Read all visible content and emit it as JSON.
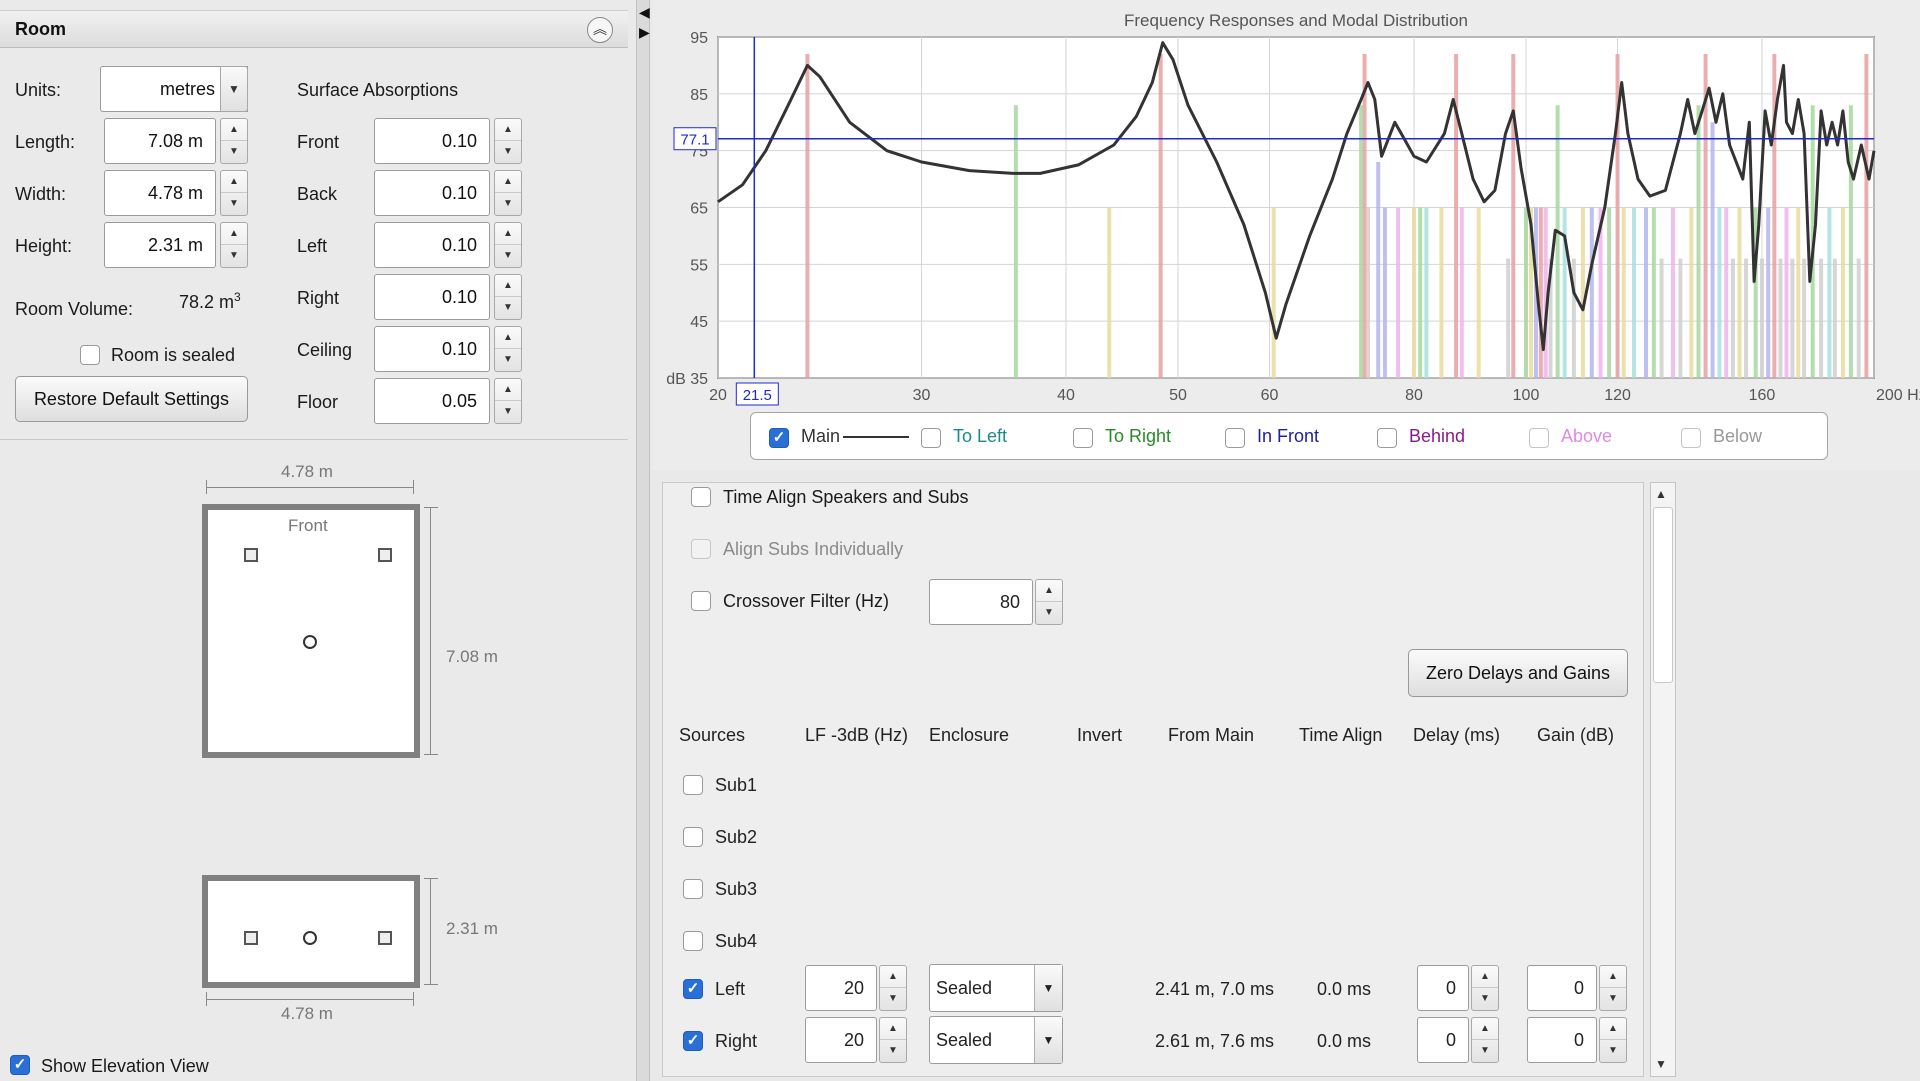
{
  "room": {
    "title": "Room",
    "units_label": "Units:",
    "units_value": "metres",
    "length_label": "Length:",
    "length_value": "7.08 m",
    "width_label": "Width:",
    "width_value": "4.78 m",
    "height_label": "Height:",
    "height_value": "2.31 m",
    "volume_label": "Room Volume:",
    "volume_value": "78.2 m",
    "volume_exp": "3",
    "sealed_label": "Room is sealed",
    "restore_label": "Restore Default Settings",
    "surface_title": "Surface Absorptions",
    "surfaces": [
      {
        "label": "Front",
        "value": "0.10"
      },
      {
        "label": "Back",
        "value": "0.10"
      },
      {
        "label": "Left",
        "value": "0.10"
      },
      {
        "label": "Right",
        "value": "0.10"
      },
      {
        "label": "Ceiling",
        "value": "0.10"
      },
      {
        "label": "Floor",
        "value": "0.05"
      }
    ]
  },
  "plan": {
    "top_dim": "4.78 m",
    "front_label": "Front",
    "side_dim": "7.08 m",
    "elev_side_dim": "2.31 m",
    "elev_bottom_dim": "4.78 m",
    "show_elevation_label": "Show Elevation View"
  },
  "chart_data": {
    "type": "line",
    "title": "Frequency Responses and Modal Distribution",
    "xlabel": "Hz",
    "ylabel": "dB",
    "xscale": "log",
    "xlim": [
      20,
      200
    ],
    "ylim": [
      35,
      95
    ],
    "x_ticks": [
      "20",
      "30",
      "40",
      "50",
      "60",
      "80",
      "100",
      "120",
      "160",
      "200 Hz"
    ],
    "x_tick_values": [
      20,
      30,
      40,
      50,
      60,
      80,
      100,
      120,
      160,
      200
    ],
    "y_ticks": [
      "95",
      "85",
      "75",
      "65",
      "55",
      "45",
      "dB 35"
    ],
    "y_tick_values": [
      95,
      85,
      75,
      65,
      55,
      45,
      35
    ],
    "cursor_x": "21.5",
    "cursor_y": "77.1",
    "cursor_x_value": 21.5,
    "cursor_y_value": 77.1,
    "series": [
      {
        "name": "Main",
        "color": "#333333",
        "points": [
          [
            20,
            66
          ],
          [
            21,
            69
          ],
          [
            22,
            75
          ],
          [
            23,
            83
          ],
          [
            23.9,
            90
          ],
          [
            24.5,
            88
          ],
          [
            26,
            80
          ],
          [
            28,
            75
          ],
          [
            30,
            73
          ],
          [
            33,
            71.5
          ],
          [
            36,
            71
          ],
          [
            38,
            71
          ],
          [
            41,
            72.5
          ],
          [
            44,
            76
          ],
          [
            46,
            81
          ],
          [
            47.5,
            87
          ],
          [
            48.5,
            94
          ],
          [
            49.5,
            91
          ],
          [
            51,
            83
          ],
          [
            54,
            73
          ],
          [
            57,
            62
          ],
          [
            59.5,
            50
          ],
          [
            60.8,
            42
          ],
          [
            62,
            48
          ],
          [
            65,
            60
          ],
          [
            68,
            70
          ],
          [
            70,
            78
          ],
          [
            72,
            84
          ],
          [
            73,
            87
          ],
          [
            74,
            84
          ],
          [
            75,
            74
          ],
          [
            76,
            77
          ],
          [
            77,
            80
          ],
          [
            78,
            78
          ],
          [
            80,
            74
          ],
          [
            82,
            73
          ],
          [
            85,
            78
          ],
          [
            86.5,
            84
          ],
          [
            88,
            78
          ],
          [
            90,
            70
          ],
          [
            92,
            66
          ],
          [
            94,
            68
          ],
          [
            96,
            78
          ],
          [
            97.5,
            82
          ],
          [
            99,
            72
          ],
          [
            101,
            62
          ],
          [
            102.5,
            48
          ],
          [
            103.5,
            40
          ],
          [
            104.5,
            50
          ],
          [
            106,
            61
          ],
          [
            108,
            60
          ],
          [
            110,
            50
          ],
          [
            112,
            47
          ],
          [
            114,
            55
          ],
          [
            117,
            65
          ],
          [
            119.5,
            78
          ],
          [
            121,
            87
          ],
          [
            122.5,
            78
          ],
          [
            125,
            70
          ],
          [
            128,
            67
          ],
          [
            132,
            68
          ],
          [
            136,
            78
          ],
          [
            138,
            84
          ],
          [
            140,
            78
          ],
          [
            142,
            82
          ],
          [
            144,
            86
          ],
          [
            146,
            80
          ],
          [
            148,
            85
          ],
          [
            150,
            76
          ],
          [
            152,
            73
          ],
          [
            154,
            70
          ],
          [
            156,
            80
          ],
          [
            157.5,
            52
          ],
          [
            159,
            62
          ],
          [
            161,
            82
          ],
          [
            163,
            76
          ],
          [
            165,
            84
          ],
          [
            167,
            90
          ],
          [
            168,
            80
          ],
          [
            170,
            78
          ],
          [
            172,
            84
          ],
          [
            174,
            78
          ],
          [
            176,
            52
          ],
          [
            178,
            62
          ],
          [
            180,
            82
          ],
          [
            182,
            76
          ],
          [
            184,
            80
          ],
          [
            186,
            76
          ],
          [
            188,
            82
          ],
          [
            190,
            73
          ],
          [
            192,
            70
          ],
          [
            195,
            76
          ],
          [
            198,
            70
          ],
          [
            200,
            75
          ]
        ]
      }
    ],
    "mode_bars": [
      {
        "f": 23.9,
        "top": 92,
        "color": "#e8a0a0"
      },
      {
        "f": 36.2,
        "top": 83,
        "color": "#a8d8a0"
      },
      {
        "f": 43.6,
        "top": 65,
        "color": "#eadb9e"
      },
      {
        "f": 48.3,
        "top": 92,
        "color": "#e8a0a0"
      },
      {
        "f": 60.5,
        "top": 65,
        "color": "#eadb9e"
      },
      {
        "f": 72.5,
        "top": 92,
        "color": "#e8a0a0"
      },
      {
        "f": 73.0,
        "top": 65,
        "color": "#e0c8c8"
      },
      {
        "f": 72.0,
        "top": 83,
        "color": "#a8d8a0"
      },
      {
        "f": 74.5,
        "top": 73,
        "color": "#b4b4ee"
      },
      {
        "f": 75.5,
        "top": 65,
        "color": "#b4b4ee"
      },
      {
        "f": 77.5,
        "top": 65,
        "color": "#eeb4ee"
      },
      {
        "f": 80,
        "top": 65,
        "color": "#eadb9e"
      },
      {
        "f": 81,
        "top": 65,
        "color": "#a8d8a0"
      },
      {
        "f": 82,
        "top": 65,
        "color": "#a8e0e0"
      },
      {
        "f": 84.5,
        "top": 65,
        "color": "#eadb9e"
      },
      {
        "f": 87,
        "top": 92,
        "color": "#e8a0a0"
      },
      {
        "f": 88,
        "top": 65,
        "color": "#eeb4ee"
      },
      {
        "f": 91,
        "top": 65,
        "color": "#eadb9e"
      },
      {
        "f": 96.5,
        "top": 56,
        "color": "#d0d0d0"
      },
      {
        "f": 97.5,
        "top": 92,
        "color": "#e8a0a0"
      },
      {
        "f": 100,
        "top": 65,
        "color": "#a8d8a0"
      },
      {
        "f": 101,
        "top": 65,
        "color": "#eadb9e"
      },
      {
        "f": 102,
        "top": 65,
        "color": "#b4b4ee"
      },
      {
        "f": 103,
        "top": 65,
        "color": "#e8a0a0"
      },
      {
        "f": 104,
        "top": 65,
        "color": "#eeb4ee"
      },
      {
        "f": 105,
        "top": 56,
        "color": "#d0d0d0"
      },
      {
        "f": 106.5,
        "top": 83,
        "color": "#a8d8a0"
      },
      {
        "f": 108,
        "top": 65,
        "color": "#a8e0e0"
      },
      {
        "f": 110,
        "top": 56,
        "color": "#d0d0d0"
      },
      {
        "f": 112,
        "top": 65,
        "color": "#eadb9e"
      },
      {
        "f": 114,
        "top": 65,
        "color": "#b4b4ee"
      },
      {
        "f": 116,
        "top": 65,
        "color": "#eeb4ee"
      },
      {
        "f": 118,
        "top": 65,
        "color": "#a8d8a0"
      },
      {
        "f": 120,
        "top": 92,
        "color": "#e8a0a0"
      },
      {
        "f": 121.5,
        "top": 65,
        "color": "#eadb9e"
      },
      {
        "f": 124,
        "top": 65,
        "color": "#a8e0e0"
      },
      {
        "f": 127,
        "top": 65,
        "color": "#b4b4ee"
      },
      {
        "f": 129,
        "top": 65,
        "color": "#a8d8a0"
      },
      {
        "f": 131,
        "top": 56,
        "color": "#d0d0d0"
      },
      {
        "f": 134,
        "top": 65,
        "color": "#eeb4ee"
      },
      {
        "f": 136,
        "top": 56,
        "color": "#d0d0d0"
      },
      {
        "f": 139,
        "top": 65,
        "color": "#eadb9e"
      },
      {
        "f": 141,
        "top": 83,
        "color": "#a8d8a0"
      },
      {
        "f": 143,
        "top": 92,
        "color": "#e8a0a0"
      },
      {
        "f": 145,
        "top": 80,
        "color": "#b4b4ee"
      },
      {
        "f": 147,
        "top": 65,
        "color": "#a8e0e0"
      },
      {
        "f": 149,
        "top": 65,
        "color": "#eeb4ee"
      },
      {
        "f": 151,
        "top": 56,
        "color": "#d0d0d0"
      },
      {
        "f": 153,
        "top": 65,
        "color": "#eadb9e"
      },
      {
        "f": 155,
        "top": 56,
        "color": "#d0d0d0"
      },
      {
        "f": 158,
        "top": 65,
        "color": "#a8d8a0"
      },
      {
        "f": 160,
        "top": 56,
        "color": "#d0d0d0"
      },
      {
        "f": 162,
        "top": 65,
        "color": "#b4b4ee"
      },
      {
        "f": 164,
        "top": 92,
        "color": "#e8a0a0"
      },
      {
        "f": 166,
        "top": 56,
        "color": "#d0d0d0"
      },
      {
        "f": 168,
        "top": 65,
        "color": "#eeb4ee"
      },
      {
        "f": 170,
        "top": 56,
        "color": "#d0d0d0"
      },
      {
        "f": 172,
        "top": 65,
        "color": "#eadb9e"
      },
      {
        "f": 174,
        "top": 56,
        "color": "#d0d0d0"
      },
      {
        "f": 177,
        "top": 83,
        "color": "#a8d8a0"
      },
      {
        "f": 180,
        "top": 56,
        "color": "#d0d0d0"
      },
      {
        "f": 183,
        "top": 65,
        "color": "#a8e0e0"
      },
      {
        "f": 185,
        "top": 56,
        "color": "#d0d0d0"
      },
      {
        "f": 188,
        "top": 65,
        "color": "#eadb9e"
      },
      {
        "f": 191,
        "top": 83,
        "color": "#a8d8a0"
      },
      {
        "f": 194,
        "top": 56,
        "color": "#d0d0d0"
      },
      {
        "f": 197,
        "top": 92,
        "color": "#e8a0a0"
      }
    ],
    "legend": [
      {
        "label": "Main",
        "checked": true,
        "color": "#333333"
      },
      {
        "label": "To Left",
        "checked": false,
        "color": "#1d8a8a"
      },
      {
        "label": "To Right",
        "checked": false,
        "color": "#2a8a2a"
      },
      {
        "label": "In Front",
        "checked": false,
        "color": "#2020a0"
      },
      {
        "label": "Behind",
        "checked": false,
        "color": "#8a1a8a"
      },
      {
        "label": "Above",
        "checked": false,
        "color": "#e08ae0"
      },
      {
        "label": "Below",
        "checked": false,
        "color": "#999999"
      }
    ]
  },
  "settings": {
    "time_align_label": "Time Align Speakers and Subs",
    "align_subs_label": "Align Subs Individually",
    "crossover_label": "Crossover Filter (Hz)",
    "crossover_value": "80",
    "zero_btn_label": "Zero Delays and Gains"
  },
  "sources_table": {
    "headers": [
      "Sources",
      "LF -3dB (Hz)",
      "Enclosure",
      "Invert",
      "From Main",
      "Time Align",
      "Delay (ms)",
      "Gain (dB)"
    ],
    "rows": [
      {
        "name": "Sub1",
        "checked": false
      },
      {
        "name": "Sub2",
        "checked": false
      },
      {
        "name": "Sub3",
        "checked": false
      },
      {
        "name": "Sub4",
        "checked": false
      },
      {
        "name": "Left",
        "checked": true,
        "lf": "20",
        "enclosure": "Sealed",
        "from_main": "2.41 m, 7.0 ms",
        "time_align": "0.0 ms",
        "delay": "0",
        "gain": "0"
      },
      {
        "name": "Right",
        "checked": true,
        "lf": "20",
        "enclosure": "Sealed",
        "from_main": "2.61 m, 7.6 ms",
        "time_align": "0.0 ms",
        "delay": "0",
        "gain": "0"
      }
    ]
  }
}
